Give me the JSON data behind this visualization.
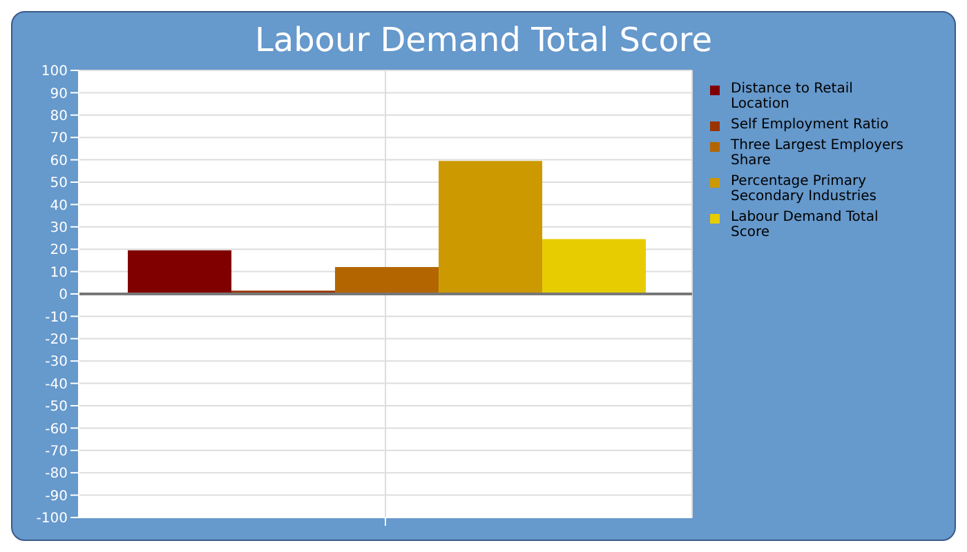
{
  "chart_data": {
    "type": "bar",
    "title": "Labour Demand Total Score",
    "categories": [
      null
    ],
    "series": [
      {
        "name": "Distance to Retail Location",
        "color": "#800000",
        "values": [
          19.5
        ]
      },
      {
        "name": "Self Employment Ratio",
        "color": "#993300",
        "values": [
          1.5
        ]
      },
      {
        "name": "Three Largest Employers Share",
        "color": "#b36600",
        "values": [
          12
        ]
      },
      {
        "name": "Percentage Primary Secondary Industries",
        "color": "#cc9900",
        "values": [
          59.5
        ]
      },
      {
        "name": "Labour Demand Total Score",
        "color": "#e6cc00",
        "values": [
          24.5
        ]
      }
    ],
    "ylim": [
      -100,
      100
    ],
    "yticks": [
      -100,
      -90,
      -80,
      -70,
      -60,
      -50,
      -40,
      -30,
      -20,
      -10,
      0,
      10,
      20,
      30,
      40,
      50,
      60,
      70,
      80,
      90,
      100
    ],
    "ref_lines": [
      {
        "axis": "y",
        "value": 0,
        "color": "#777777"
      }
    ],
    "grid": true,
    "legend": "right"
  }
}
